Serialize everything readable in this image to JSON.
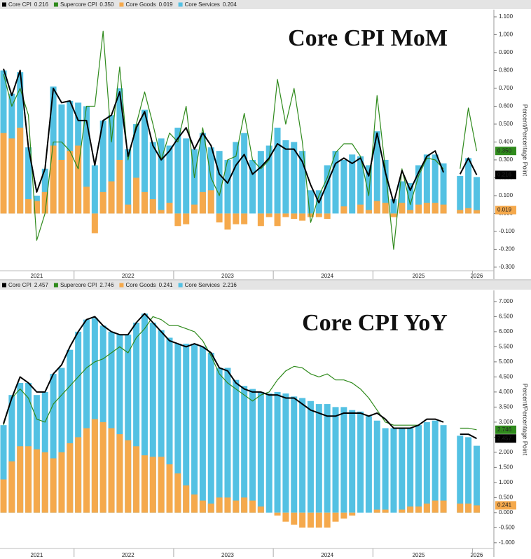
{
  "chart_data": [
    {
      "type": "combo",
      "title": "Core CPI MoM",
      "y_axis_label": "Percent/Percentage Point",
      "categories": [
        null,
        null,
        null,
        null,
        "2021",
        null,
        null,
        null,
        null,
        null,
        null,
        null,
        null,
        null,
        null,
        "2022",
        null,
        null,
        null,
        null,
        null,
        null,
        null,
        null,
        null,
        null,
        null,
        "2023",
        null,
        null,
        null,
        null,
        null,
        null,
        null,
        null,
        null,
        null,
        null,
        "2024",
        null,
        null,
        null,
        null,
        null,
        null,
        null,
        null,
        null,
        null,
        "2025",
        null,
        null,
        null,
        null,
        null,
        null,
        "2026"
      ],
      "ylim": [
        -0.32,
        1.14
      ],
      "yticks": [
        {
          "value": -0.3,
          "label": "-0.300"
        },
        {
          "value": -0.2,
          "label": "-0.200"
        },
        {
          "value": -0.1,
          "label": "-0.100"
        },
        {
          "value": 0,
          "label": "0.000"
        },
        {
          "value": 0.1,
          "label": "0.100"
        },
        {
          "value": 0.2,
          "label": "0.200"
        },
        {
          "value": 0.3,
          "label": "0.300"
        },
        {
          "value": 0.4,
          "label": "0.400"
        },
        {
          "value": 0.5,
          "label": "0.500"
        },
        {
          "value": 0.6,
          "label": "0.600"
        },
        {
          "value": 0.7,
          "label": "0.700"
        },
        {
          "value": 0.8,
          "label": "0.800"
        },
        {
          "value": 0.9,
          "label": "0.900"
        },
        {
          "value": 1.0,
          "label": "1.000"
        },
        {
          "value": 1.1,
          "label": "1.100"
        }
      ],
      "series": [
        {
          "name": "Core CPI",
          "type": "line",
          "color": "#000000",
          "last_label": "0.216",
          "tag": true,
          "values": [
            0.81,
            0.66,
            0.8,
            0.37,
            0.12,
            0.25,
            0.7,
            0.62,
            0.63,
            0.52,
            0.52,
            0.27,
            0.52,
            0.55,
            0.68,
            0.32,
            0.48,
            0.57,
            0.38,
            0.3,
            0.35,
            0.42,
            0.48,
            0.36,
            0.45,
            0.38,
            0.22,
            0.17,
            0.27,
            0.33,
            0.22,
            0.26,
            0.31,
            0.39,
            0.36,
            0.36,
            0.29,
            0.16,
            0.06,
            0.17,
            0.28,
            0.31,
            0.28,
            0.31,
            0.21,
            0.45,
            0.23,
            0.06,
            0.24,
            0.13,
            0.23,
            0.32,
            0.35,
            0.23,
            null,
            0.22,
            0.31,
            0.216
          ]
        },
        {
          "name": "Supercore CPI",
          "type": "line",
          "color": "#2f8a1c",
          "last_label": "0.350",
          "tag": true,
          "values": [
            0.78,
            0.6,
            0.7,
            0.55,
            -0.15,
            0.0,
            0.4,
            0.4,
            0.35,
            0.25,
            0.6,
            0.6,
            1.02,
            0.4,
            0.82,
            0.3,
            0.5,
            0.68,
            0.5,
            0.3,
            0.45,
            0.4,
            0.6,
            0.2,
            0.48,
            0.2,
            0.1,
            0.3,
            0.32,
            0.56,
            0.3,
            0.25,
            0.3,
            0.75,
            0.5,
            0.7,
            0.4,
            -0.05,
            0.1,
            0.2,
            0.34,
            0.39,
            0.39,
            0.32,
            0.1,
            0.66,
            0.25,
            -0.2,
            0.25,
            0.05,
            0.21,
            0.31,
            0.3,
            0.25,
            null,
            0.25,
            0.59,
            0.35
          ]
        },
        {
          "name": "Core Goods",
          "type": "bar",
          "color": "#f5a94c",
          "last_label": "0.019",
          "tag": true,
          "values": [
            0.45,
            0.42,
            0.48,
            0.08,
            0.07,
            0.12,
            0.38,
            0.3,
            0.35,
            0.38,
            0.15,
            -0.11,
            0.12,
            0.18,
            0.3,
            0.05,
            0.2,
            0.12,
            0.08,
            0.02,
            0.06,
            -0.07,
            -0.06,
            0.05,
            0.12,
            0.13,
            -0.05,
            -0.09,
            -0.06,
            -0.06,
            0.0,
            -0.07,
            -0.02,
            -0.07,
            -0.02,
            -0.03,
            -0.04,
            -0.02,
            -0.02,
            -0.03,
            0.0,
            0.04,
            0.0,
            0.05,
            0.02,
            0.07,
            0.06,
            -0.02,
            0.06,
            0.02,
            0.05,
            0.06,
            0.06,
            0.05,
            null,
            0.02,
            0.03,
            0.019
          ]
        },
        {
          "name": "Core Services",
          "type": "bar",
          "color": "#53c1e3",
          "last_label": "0.204",
          "tag": false,
          "values": [
            0.8,
            0.67,
            0.79,
            0.37,
            0.1,
            0.25,
            0.71,
            0.61,
            0.63,
            0.62,
            0.6,
            0.27,
            0.52,
            0.55,
            0.7,
            0.36,
            0.5,
            0.58,
            0.4,
            0.42,
            0.38,
            0.48,
            0.42,
            0.36,
            0.45,
            0.37,
            0.35,
            0.3,
            0.4,
            0.45,
            0.3,
            0.35,
            0.38,
            0.48,
            0.41,
            0.4,
            0.35,
            0.13,
            0.13,
            0.27,
            0.35,
            0.3,
            0.33,
            0.32,
            0.27,
            0.46,
            0.3,
            0.08,
            0.18,
            0.17,
            0.27,
            0.33,
            0.33,
            0.28,
            null,
            0.21,
            0.31,
            0.204
          ]
        }
      ]
    },
    {
      "type": "combo",
      "title": "Core CPI YoY",
      "y_axis_label": "Percent/Percentage Point",
      "categories": [
        null,
        null,
        null,
        null,
        "2021",
        null,
        null,
        null,
        null,
        null,
        null,
        null,
        null,
        null,
        null,
        "2022",
        null,
        null,
        null,
        null,
        null,
        null,
        null,
        null,
        null,
        null,
        null,
        "2023",
        null,
        null,
        null,
        null,
        null,
        null,
        null,
        null,
        null,
        null,
        null,
        "2024",
        null,
        null,
        null,
        null,
        null,
        null,
        null,
        null,
        null,
        null,
        "2025",
        null,
        null,
        null,
        null,
        null,
        null,
        "2026"
      ],
      "ylim": [
        -1.19,
        7.37
      ],
      "yticks": [
        {
          "value": -1.0,
          "label": "-1.000"
        },
        {
          "value": -0.5,
          "label": "-0.500"
        },
        {
          "value": 0,
          "label": "0.000"
        },
        {
          "value": 0.5,
          "label": "0.500"
        },
        {
          "value": 1.0,
          "label": "1.000"
        },
        {
          "value": 1.5,
          "label": "1.500"
        },
        {
          "value": 2.0,
          "label": "2.000"
        },
        {
          "value": 2.5,
          "label": "2.500"
        },
        {
          "value": 3.0,
          "label": "3.000"
        },
        {
          "value": 3.5,
          "label": "3.500"
        },
        {
          "value": 4.0,
          "label": "4.000"
        },
        {
          "value": 4.5,
          "label": "4.500"
        },
        {
          "value": 5.0,
          "label": "5.000"
        },
        {
          "value": 5.5,
          "label": "5.500"
        },
        {
          "value": 6.0,
          "label": "6.000"
        },
        {
          "value": 6.5,
          "label": "6.500"
        },
        {
          "value": 7.0,
          "label": "7.000"
        }
      ],
      "series": [
        {
          "name": "Core CPI",
          "type": "line",
          "color": "#000000",
          "last_label": "2.457",
          "tag": true,
          "values": [
            2.95,
            3.8,
            4.5,
            4.3,
            4.0,
            4.0,
            4.6,
            4.9,
            5.5,
            6.0,
            6.4,
            6.5,
            6.2,
            6.0,
            5.9,
            5.9,
            6.3,
            6.6,
            6.3,
            6.0,
            5.7,
            5.6,
            5.5,
            5.6,
            5.5,
            5.3,
            4.8,
            4.7,
            4.3,
            4.1,
            4.0,
            4.0,
            3.9,
            3.9,
            3.8,
            3.8,
            3.6,
            3.4,
            3.3,
            3.2,
            3.2,
            3.3,
            3.3,
            3.3,
            3.2,
            3.3,
            3.1,
            2.8,
            2.8,
            2.8,
            2.9,
            3.1,
            3.1,
            3.0,
            null,
            2.6,
            2.6,
            2.457
          ]
        },
        {
          "name": "Supercore CPI",
          "type": "line",
          "color": "#2f8a1c",
          "last_label": "2.746",
          "tag": true,
          "values": [
            2.9,
            3.8,
            4.1,
            3.8,
            3.1,
            3.0,
            3.6,
            3.9,
            4.2,
            4.5,
            4.8,
            5.0,
            5.1,
            5.3,
            5.5,
            5.3,
            5.8,
            6.1,
            6.5,
            6.4,
            6.2,
            6.2,
            6.1,
            6.0,
            5.7,
            5.2,
            4.6,
            4.3,
            4.1,
            3.9,
            3.7,
            3.9,
            4.0,
            4.4,
            4.7,
            4.85,
            4.8,
            4.6,
            4.5,
            4.6,
            4.4,
            4.4,
            4.3,
            4.1,
            3.8,
            3.4,
            3.0,
            2.9,
            2.9,
            2.9,
            2.9,
            3.1,
            3.1,
            3.0,
            null,
            2.8,
            2.8,
            2.746
          ]
        },
        {
          "name": "Core Goods",
          "type": "bar",
          "color": "#f5a94c",
          "last_label": "0.241",
          "tag": true,
          "values": [
            1.1,
            1.7,
            2.2,
            2.2,
            2.1,
            2.0,
            1.8,
            2.0,
            2.3,
            2.5,
            2.8,
            3.1,
            3.0,
            2.8,
            2.6,
            2.4,
            2.2,
            1.9,
            1.85,
            1.85,
            1.6,
            1.3,
            0.9,
            0.6,
            0.4,
            0.3,
            0.5,
            0.5,
            0.4,
            0.5,
            0.4,
            0.2,
            0.0,
            -0.1,
            -0.3,
            -0.4,
            -0.5,
            -0.5,
            -0.5,
            -0.5,
            -0.3,
            -0.2,
            -0.1,
            0.0,
            0.0,
            0.1,
            0.1,
            0.0,
            0.1,
            0.2,
            0.2,
            0.3,
            0.4,
            0.4,
            null,
            0.3,
            0.3,
            0.241
          ]
        },
        {
          "name": "Core Services",
          "type": "bar",
          "color": "#53c1e3",
          "last_label": "2.216",
          "tag": false,
          "values": [
            2.9,
            3.9,
            4.3,
            4.3,
            3.9,
            4.0,
            4.6,
            4.8,
            5.4,
            6.0,
            6.4,
            6.45,
            6.2,
            6.0,
            5.9,
            5.9,
            6.3,
            6.6,
            6.3,
            6.05,
            5.8,
            5.6,
            5.6,
            5.6,
            5.5,
            5.3,
            4.8,
            4.8,
            4.4,
            4.2,
            4.1,
            4.0,
            3.95,
            4.0,
            3.95,
            3.85,
            3.8,
            3.7,
            3.6,
            3.6,
            3.5,
            3.5,
            3.4,
            3.35,
            3.2,
            3.05,
            2.8,
            2.8,
            2.8,
            2.8,
            2.9,
            3.0,
            3.05,
            2.9,
            null,
            2.55,
            2.5,
            2.216
          ]
        }
      ]
    }
  ]
}
